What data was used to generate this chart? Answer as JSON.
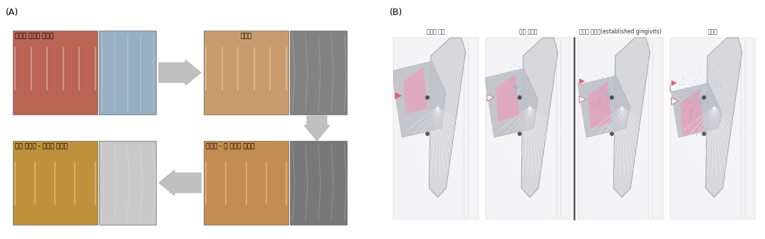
{
  "panel_a_label": "(A)",
  "panel_b_label": "(B)",
  "background_color": "#ffffff",
  "figsize": [
    10.74,
    3.36
  ],
  "dpi": 100,
  "panel_a": {
    "top_left_label": "건강한 잋몸과 치조골",
    "top_right_label": "치은염",
    "bottom_left_label": "심한 치주염 - 치아가 흔들림",
    "bottom_right_label": "치주염 - 뿘 파괴가 나타남",
    "arrow_color": "#c0c0c0",
    "photo_top_left_clinical": {
      "r": 185,
      "g": 100,
      "b": 85
    },
    "photo_top_left_xray": {
      "r": 150,
      "g": 175,
      "b": 195
    },
    "photo_top_right_clinical": {
      "r": 200,
      "g": 155,
      "b": 110
    },
    "photo_top_right_xray": {
      "r": 130,
      "g": 130,
      "b": 130
    },
    "photo_bottom_right_clinical": {
      "r": 195,
      "g": 140,
      "b": 80
    },
    "photo_bottom_right_xray": {
      "r": 120,
      "g": 120,
      "b": 120
    },
    "photo_bottom_left_clinical": {
      "r": 190,
      "g": 145,
      "b": 60
    },
    "photo_bottom_left_xray": {
      "r": 200,
      "g": 200,
      "b": 200
    }
  },
  "panel_b": {
    "labels": [
      "건강한 치은",
      "조기 치은염",
      "진행성 치은염(established gingivits)",
      "치주염"
    ],
    "label_fontsize": 5.5,
    "separator_color": "#555555",
    "bg_color": "#f0f0f2",
    "tooth_body_color": "#d8d8dc",
    "tooth_edge_color": "#aaaaaa",
    "gum_gray_color": "#b8b8c0",
    "pink_color": "#e8a0b8",
    "blue_dot_color": "#88c0d8",
    "triangle_pink_color": "#e07888",
    "triangle_white_color": "#f0f0f0"
  }
}
